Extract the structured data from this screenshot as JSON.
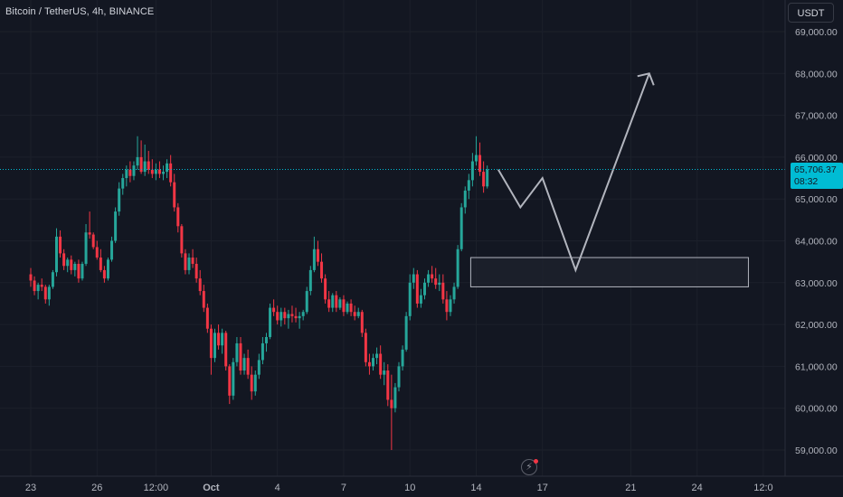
{
  "header": {
    "symbol_title": "Bitcoin / TetherUS, 4h, BINANCE",
    "currency_button": "USDT"
  },
  "last_price": {
    "price": "65,706.37",
    "countdown": "08:32"
  },
  "icons": {
    "flash": "flash-icon"
  },
  "colors": {
    "background": "#131722",
    "up": "#26a69a",
    "down": "#f23645",
    "price_line": "#00bcd4",
    "projection": "#b2b5be",
    "zone_fill": "#1e222d",
    "zone_border": "#b2b5be"
  },
  "chart_data": {
    "type": "candlestick",
    "y_axis": {
      "range": [
        58500,
        69300
      ],
      "ticks": [
        "69,000.00",
        "68,000.00",
        "67,000.00",
        "66,000.00",
        "65,000.00",
        "64,000.00",
        "63,000.00",
        "62,000.00",
        "61,000.00",
        "60,000.00",
        "59,000.00"
      ],
      "tick_values": [
        69000,
        68000,
        67000,
        66000,
        65000,
        64000,
        63000,
        62000,
        61000,
        60000,
        59000
      ]
    },
    "x_axis": {
      "ticks": [
        "23",
        "26",
        "12:00",
        "Oct",
        "4",
        "7",
        "10",
        "14",
        "17",
        "21",
        "24",
        "12:0"
      ],
      "tick_index": [
        0,
        18,
        34,
        49,
        67,
        85,
        103,
        121,
        139,
        163,
        181,
        199
      ]
    },
    "last_price_value": 65706.37,
    "ohlc": [
      [
        63200,
        63350,
        62900,
        63050
      ],
      [
        63050,
        63150,
        62700,
        62800
      ],
      [
        62800,
        63000,
        62600,
        62950
      ],
      [
        62950,
        63100,
        62800,
        62900
      ],
      [
        62900,
        62950,
        62500,
        62600
      ],
      [
        62600,
        62950,
        62450,
        62900
      ],
      [
        62900,
        63300,
        62850,
        63250
      ],
      [
        63250,
        64300,
        63150,
        64100
      ],
      [
        64100,
        64250,
        63600,
        63700
      ],
      [
        63700,
        63800,
        63300,
        63400
      ],
      [
        63400,
        63600,
        63250,
        63550
      ],
      [
        63550,
        63650,
        63200,
        63300
      ],
      [
        63300,
        63500,
        63150,
        63450
      ],
      [
        63450,
        63550,
        63000,
        63100
      ],
      [
        63100,
        63500,
        63050,
        63450
      ],
      [
        63450,
        64400,
        63400,
        64200
      ],
      [
        64200,
        64700,
        64050,
        64150
      ],
      [
        64150,
        64200,
        63800,
        63850
      ],
      [
        63850,
        64000,
        63550,
        63600
      ],
      [
        63600,
        63800,
        63250,
        63300
      ],
      [
        63300,
        63400,
        63000,
        63100
      ],
      [
        63100,
        63600,
        63050,
        63550
      ],
      [
        63550,
        64100,
        63500,
        64000
      ],
      [
        64000,
        64800,
        63950,
        64700
      ],
      [
        64700,
        65400,
        64600,
        65250
      ],
      [
        65250,
        65600,
        65100,
        65500
      ],
      [
        65500,
        65800,
        65300,
        65700
      ],
      [
        65700,
        65900,
        65400,
        65550
      ],
      [
        65550,
        65900,
        65450,
        65800
      ],
      [
        65800,
        66500,
        65700,
        66000
      ],
      [
        66000,
        66400,
        65600,
        65650
      ],
      [
        65650,
        66300,
        65550,
        65900
      ],
      [
        65900,
        66150,
        65600,
        65700
      ],
      [
        65700,
        65950,
        65500,
        65600
      ],
      [
        65600,
        65850,
        65450,
        65700
      ],
      [
        65700,
        65900,
        65500,
        65600
      ],
      [
        65600,
        65800,
        65450,
        65650
      ],
      [
        65650,
        65950,
        65500,
        65850
      ],
      [
        65850,
        66050,
        65300,
        65400
      ],
      [
        65400,
        65600,
        64700,
        64800
      ],
      [
        64800,
        64900,
        64200,
        64350
      ],
      [
        64350,
        64400,
        63600,
        63700
      ],
      [
        63700,
        63800,
        63200,
        63300
      ],
      [
        63300,
        63700,
        63200,
        63600
      ],
      [
        63600,
        63800,
        63350,
        63450
      ],
      [
        63450,
        63600,
        63000,
        63100
      ],
      [
        63100,
        63300,
        62700,
        62800
      ],
      [
        62800,
        62950,
        62300,
        62400
      ],
      [
        62400,
        62500,
        61800,
        61900
      ],
      [
        61900,
        62000,
        60800,
        61200
      ],
      [
        61200,
        61900,
        61100,
        61800
      ],
      [
        61800,
        62000,
        61400,
        61500
      ],
      [
        61500,
        61900,
        61300,
        61800
      ],
      [
        61800,
        61850,
        60900,
        61000
      ],
      [
        61000,
        61050,
        60100,
        60300
      ],
      [
        60300,
        61200,
        60200,
        61100
      ],
      [
        61100,
        61700,
        61000,
        61550
      ],
      [
        61550,
        61700,
        60800,
        60900
      ],
      [
        60900,
        61300,
        60800,
        61200
      ],
      [
        61200,
        61400,
        60700,
        60800
      ],
      [
        60800,
        61000,
        60200,
        60400
      ],
      [
        60400,
        60900,
        60300,
        60800
      ],
      [
        60800,
        61300,
        60700,
        61150
      ],
      [
        61150,
        61700,
        61050,
        61550
      ],
      [
        61550,
        61800,
        61350,
        61700
      ],
      [
        61700,
        62500,
        61650,
        62400
      ],
      [
        62400,
        62600,
        62200,
        62300
      ],
      [
        62300,
        62450,
        62000,
        62100
      ],
      [
        62100,
        62400,
        61950,
        62300
      ],
      [
        62300,
        62400,
        62000,
        62150
      ],
      [
        62150,
        62350,
        61900,
        62250
      ],
      [
        62250,
        62450,
        62050,
        62200
      ],
      [
        62200,
        62400,
        62050,
        62150
      ],
      [
        62150,
        62300,
        61900,
        62200
      ],
      [
        62200,
        62350,
        62100,
        62300
      ],
      [
        62300,
        62900,
        62250,
        62800
      ],
      [
        62800,
        63400,
        62700,
        63300
      ],
      [
        63300,
        64100,
        63250,
        63800
      ],
      [
        63800,
        64000,
        63400,
        63500
      ],
      [
        63500,
        63700,
        63000,
        63100
      ],
      [
        63100,
        63200,
        62500,
        62600
      ],
      [
        62600,
        62800,
        62300,
        62400
      ],
      [
        62400,
        62750,
        62300,
        62700
      ],
      [
        62700,
        62800,
        62300,
        62400
      ],
      [
        62400,
        62650,
        62350,
        62600
      ],
      [
        62600,
        62700,
        62200,
        62300
      ],
      [
        62300,
        62550,
        62250,
        62500
      ],
      [
        62500,
        62600,
        62200,
        62300
      ],
      [
        62300,
        62450,
        62100,
        62200
      ],
      [
        62200,
        62400,
        62150,
        62300
      ],
      [
        62300,
        62350,
        61700,
        61800
      ],
      [
        61800,
        61900,
        61000,
        61100
      ],
      [
        61100,
        61300,
        60800,
        61000
      ],
      [
        61000,
        61300,
        60900,
        61200
      ],
      [
        61200,
        61450,
        61050,
        61300
      ],
      [
        61300,
        61500,
        60700,
        60800
      ],
      [
        60800,
        61100,
        60550,
        60900
      ],
      [
        60900,
        61050,
        60050,
        60200
      ],
      [
        60200,
        60800,
        59000,
        60000
      ],
      [
        60000,
        60600,
        59900,
        60500
      ],
      [
        60500,
        61100,
        60400,
        61000
      ],
      [
        61000,
        61500,
        60900,
        61400
      ],
      [
        61400,
        62300,
        61350,
        62200
      ],
      [
        62200,
        63200,
        62100,
        63000
      ],
      [
        63000,
        63350,
        62850,
        63200
      ],
      [
        63200,
        63300,
        62400,
        62500
      ],
      [
        62500,
        62850,
        62400,
        62700
      ],
      [
        62700,
        63100,
        62600,
        63000
      ],
      [
        63000,
        63300,
        62900,
        63200
      ],
      [
        63200,
        63400,
        63000,
        63100
      ],
      [
        63100,
        63350,
        62850,
        62950
      ],
      [
        62950,
        63200,
        62800,
        63000
      ],
      [
        63000,
        63200,
        62500,
        62600
      ],
      [
        62600,
        62800,
        62100,
        62300
      ],
      [
        62300,
        62700,
        62200,
        62600
      ],
      [
        62600,
        63000,
        62500,
        62900
      ],
      [
        62900,
        63900,
        62850,
        63800
      ],
      [
        63800,
        64900,
        63750,
        64800
      ],
      [
        64800,
        65300,
        64650,
        65200
      ],
      [
        65200,
        65600,
        65000,
        65450
      ],
      [
        65450,
        66100,
        65300,
        65900
      ],
      [
        65900,
        66500,
        65800,
        66050
      ],
      [
        66050,
        66350,
        65550,
        65650
      ],
      [
        65650,
        65900,
        65150,
        65300
      ],
      [
        65300,
        65800,
        65250,
        65706
      ]
    ],
    "annotations": {
      "support_zone": {
        "price_top": 63600,
        "price_bottom": 62900,
        "from_index": 120,
        "to_index": 192
      },
      "projection_path": [
        {
          "index": 127,
          "price": 65700
        },
        {
          "index": 133,
          "price": 64800
        },
        {
          "index": 139,
          "price": 65500
        },
        {
          "index": 148,
          "price": 63300
        },
        {
          "index": 168,
          "price": 68000
        }
      ]
    }
  }
}
